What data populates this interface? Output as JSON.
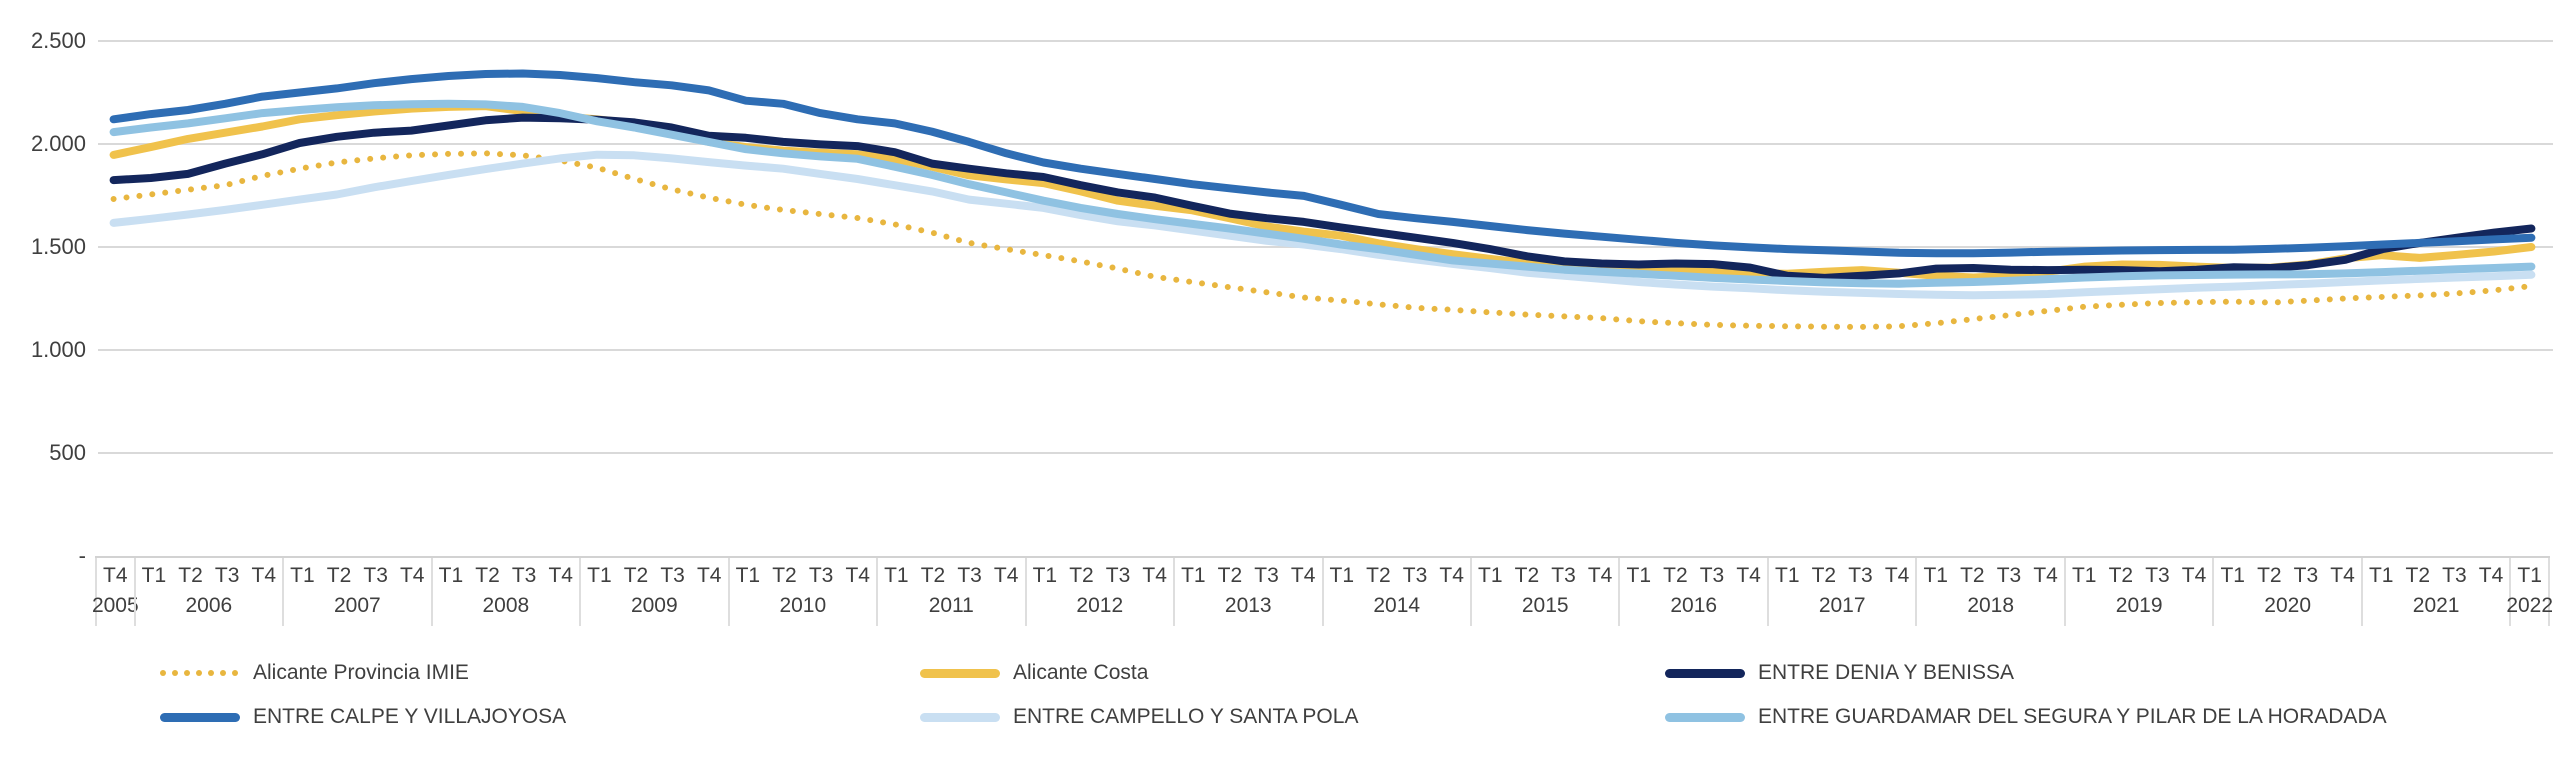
{
  "chart_data": {
    "type": "line",
    "title": "",
    "xlabel": "",
    "ylabel": "",
    "grid": "horizontal",
    "legend_position": "bottom",
    "y_axis": {
      "min": 0,
      "max": 2500,
      "ticks": [
        {
          "label": "2.500",
          "value": 2500
        },
        {
          "label": "2.000",
          "value": 2000
        },
        {
          "label": "1.500",
          "value": 1500
        },
        {
          "label": "1.000",
          "value": 1000
        },
        {
          "label": "500",
          "value": 500
        },
        {
          "label": "-",
          "value": 0
        }
      ]
    },
    "x_categories": {
      "years": [
        {
          "year": "2005",
          "quarters": [
            "T4"
          ]
        },
        {
          "year": "2006",
          "quarters": [
            "T1",
            "T2",
            "T3",
            "T4"
          ]
        },
        {
          "year": "2007",
          "quarters": [
            "T1",
            "T2",
            "T3",
            "T4"
          ]
        },
        {
          "year": "2008",
          "quarters": [
            "T1",
            "T2",
            "T3",
            "T4"
          ]
        },
        {
          "year": "2009",
          "quarters": [
            "T1",
            "T2",
            "T3",
            "T4"
          ]
        },
        {
          "year": "2010",
          "quarters": [
            "T1",
            "T2",
            "T3",
            "T4"
          ]
        },
        {
          "year": "2011",
          "quarters": [
            "T1",
            "T2",
            "T3",
            "T4"
          ]
        },
        {
          "year": "2012",
          "quarters": [
            "T1",
            "T2",
            "T3",
            "T4"
          ]
        },
        {
          "year": "2013",
          "quarters": [
            "T1",
            "T2",
            "T3",
            "T4"
          ]
        },
        {
          "year": "2014",
          "quarters": [
            "T1",
            "T2",
            "T3",
            "T4"
          ]
        },
        {
          "year": "2015",
          "quarters": [
            "T1",
            "T2",
            "T3",
            "T4"
          ]
        },
        {
          "year": "2016",
          "quarters": [
            "T1",
            "T2",
            "T3",
            "T4"
          ]
        },
        {
          "year": "2017",
          "quarters": [
            "T1",
            "T2",
            "T3",
            "T4"
          ]
        },
        {
          "year": "2018",
          "quarters": [
            "T1",
            "T2",
            "T3",
            "T4"
          ]
        },
        {
          "year": "2019",
          "quarters": [
            "T1",
            "T2",
            "T3",
            "T4"
          ]
        },
        {
          "year": "2020",
          "quarters": [
            "T1",
            "T2",
            "T3",
            "T4"
          ]
        },
        {
          "year": "2021",
          "quarters": [
            "T1",
            "T2",
            "T3",
            "T4"
          ]
        },
        {
          "year": "2022",
          "quarters": [
            "T1"
          ]
        }
      ]
    },
    "series": [
      {
        "id": "provincia",
        "name": "Alicante Provincia IMIE",
        "color": "#E8B63F",
        "line_style": "dotted",
        "values": [
          1733,
          1755,
          1778,
          1800,
          1845,
          1880,
          1910,
          1930,
          1945,
          1952,
          1955,
          1945,
          1920,
          1885,
          1830,
          1780,
          1740,
          1705,
          1680,
          1660,
          1641,
          1610,
          1570,
          1520,
          1490,
          1460,
          1430,
          1395,
          1355,
          1330,
          1305,
          1280,
          1255,
          1240,
          1222,
          1205,
          1195,
          1183,
          1172,
          1163,
          1155,
          1140,
          1130,
          1122,
          1118,
          1115,
          1113,
          1112,
          1115,
          1130,
          1150,
          1170,
          1190,
          1210,
          1220,
          1228,
          1232,
          1235,
          1230,
          1240,
          1250,
          1258,
          1265,
          1275,
          1290,
          1310
        ]
      },
      {
        "id": "costa",
        "name": "Alicante Costa",
        "color": "#F0C24C",
        "line_style": "solid",
        "values": [
          1947,
          1985,
          2025,
          2055,
          2085,
          2120,
          2140,
          2158,
          2172,
          2180,
          2184,
          2160,
          2135,
          2120,
          2100,
          2050,
          2010,
          1985,
          1968,
          1958,
          1950,
          1928,
          1890,
          1848,
          1828,
          1810,
          1770,
          1725,
          1700,
          1678,
          1640,
          1600,
          1575,
          1555,
          1518,
          1490,
          1465,
          1442,
          1422,
          1412,
          1402,
          1398,
          1388,
          1380,
          1374,
          1370,
          1380,
          1388,
          1375,
          1360,
          1352,
          1360,
          1380,
          1405,
          1415,
          1413,
          1405,
          1398,
          1400,
          1415,
          1445,
          1460,
          1447,
          1462,
          1478,
          1500
        ]
      },
      {
        "id": "denia",
        "name": "ENTRE DENIA Y BENISSA",
        "color": "#13265C",
        "line_style": "solid",
        "values": [
          1825,
          1835,
          1855,
          1905,
          1950,
          2005,
          2035,
          2055,
          2065,
          2090,
          2115,
          2128,
          2125,
          2118,
          2105,
          2080,
          2040,
          2030,
          2010,
          1998,
          1990,
          1960,
          1905,
          1880,
          1858,
          1840,
          1800,
          1765,
          1740,
          1700,
          1662,
          1640,
          1622,
          1595,
          1570,
          1545,
          1520,
          1490,
          1455,
          1430,
          1420,
          1415,
          1420,
          1417,
          1400,
          1360,
          1350,
          1360,
          1372,
          1395,
          1398,
          1390,
          1388,
          1390,
          1388,
          1382,
          1390,
          1402,
          1398,
          1412,
          1438,
          1490,
          1520,
          1545,
          1570,
          1590
        ]
      },
      {
        "id": "calpe",
        "name": "ENTRE CALPE Y VILLAJOYOSA",
        "color": "#2E6DB4",
        "line_style": "solid",
        "values": [
          2120,
          2145,
          2165,
          2195,
          2230,
          2250,
          2270,
          2295,
          2315,
          2330,
          2340,
          2342,
          2335,
          2320,
          2300,
          2285,
          2260,
          2210,
          2195,
          2150,
          2120,
          2100,
          2060,
          2010,
          1955,
          1910,
          1880,
          1855,
          1830,
          1805,
          1785,
          1765,
          1748,
          1705,
          1660,
          1640,
          1622,
          1602,
          1582,
          1565,
          1550,
          1535,
          1520,
          1508,
          1498,
          1490,
          1484,
          1478,
          1472,
          1470,
          1470,
          1473,
          1477,
          1480,
          1483,
          1485,
          1486,
          1487,
          1491,
          1496,
          1504,
          1512,
          1520,
          1528,
          1537,
          1545
        ]
      },
      {
        "id": "campello",
        "name": "ENTRE CAMPELLO Y SANTA POLA",
        "color": "#C9DFF2",
        "line_style": "solid",
        "values": [
          1617,
          1637,
          1658,
          1680,
          1705,
          1730,
          1755,
          1790,
          1820,
          1850,
          1878,
          1905,
          1930,
          1948,
          1945,
          1930,
          1912,
          1895,
          1880,
          1855,
          1830,
          1800,
          1770,
          1730,
          1710,
          1690,
          1655,
          1625,
          1605,
          1580,
          1555,
          1530,
          1512,
          1490,
          1462,
          1440,
          1418,
          1398,
          1375,
          1360,
          1345,
          1330,
          1318,
          1308,
          1300,
          1290,
          1283,
          1277,
          1272,
          1268,
          1266,
          1268,
          1272,
          1280,
          1288,
          1295,
          1302,
          1308,
          1315,
          1322,
          1330,
          1338,
          1345,
          1352,
          1358,
          1365
        ]
      },
      {
        "id": "guardamar",
        "name": "ENTRE GUARDAMAR DEL SEGURA Y PILAR DE LA HORADADA",
        "color": "#8FC2E2",
        "line_style": "solid",
        "values": [
          2058,
          2080,
          2100,
          2125,
          2150,
          2165,
          2178,
          2188,
          2193,
          2195,
          2192,
          2180,
          2150,
          2110,
          2080,
          2045,
          2010,
          1975,
          1955,
          1940,
          1928,
          1890,
          1850,
          1805,
          1765,
          1725,
          1690,
          1660,
          1635,
          1612,
          1590,
          1565,
          1540,
          1512,
          1490,
          1462,
          1435,
          1420,
          1405,
          1390,
          1380,
          1370,
          1360,
          1350,
          1342,
          1335,
          1328,
          1324,
          1322,
          1326,
          1330,
          1336,
          1344,
          1352,
          1358,
          1362,
          1364,
          1366,
          1367,
          1368,
          1372,
          1378,
          1385,
          1392,
          1398,
          1405
        ]
      }
    ]
  },
  "legend": {
    "rows": [
      [
        {
          "label": "Alicante Provincia IMIE",
          "series": "provincia"
        },
        {
          "label": "Alicante Costa",
          "series": "costa"
        },
        {
          "label": "ENTRE DENIA Y BENISSA",
          "series": "denia"
        }
      ],
      [
        {
          "label": "ENTRE CALPE Y VILLAJOYOSA",
          "series": "calpe"
        },
        {
          "label": "ENTRE CAMPELLO Y SANTA POLA",
          "series": "campello"
        },
        {
          "label": "ENTRE GUARDAMAR DEL SEGURA Y PILAR DE LA HORADADA",
          "series": "guardamar"
        }
      ]
    ]
  }
}
